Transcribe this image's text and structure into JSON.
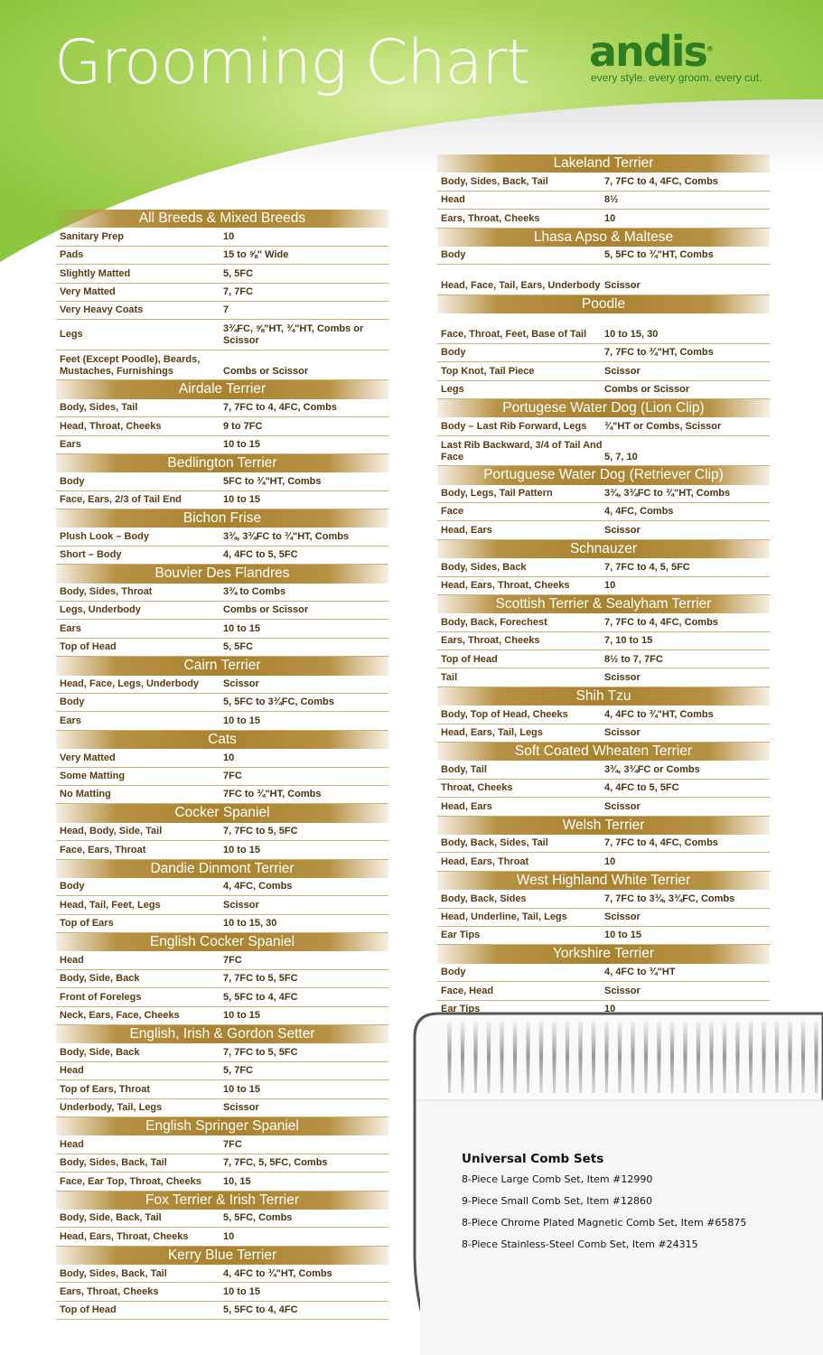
{
  "header": {
    "title": "Grooming Chart",
    "logo": "andis",
    "tagline": "every style. every groom. every cut."
  },
  "colors": {
    "green": "#8dc63f",
    "brand_green": "#2f7d22",
    "gold": "#a9822f",
    "text_brown": "#5a3c12"
  },
  "left_column": [
    {
      "breed": "All Breeds & Mixed Breeds",
      "rows": [
        [
          "Sanitary Prep",
          "10"
        ],
        [
          "Pads",
          "15 to ⅝\" Wide"
        ],
        [
          "Slightly Matted",
          "5, 5FC"
        ],
        [
          "Very Matted",
          "7, 7FC"
        ],
        [
          "Very Heavy Coats",
          "7"
        ],
        [
          "Legs",
          "3¾FC, ⅝\"HT, ¾\"HT, Combs or Scissor"
        ],
        [
          "Feet (Except Poodle), Beards, Mustaches, Furnishings",
          "Combs or Scissor"
        ]
      ]
    },
    {
      "breed": "Airdale Terrier",
      "rows": [
        [
          "Body, Sides, Tail",
          "7, 7FC to 4, 4FC, Combs"
        ],
        [
          "Head, Throat, Cheeks",
          "9 to 7FC"
        ],
        [
          "Ears",
          "10 to 15"
        ]
      ]
    },
    {
      "breed": "Bedlington Terrier",
      "rows": [
        [
          "Body",
          "5FC to ¾\"HT, Combs"
        ],
        [
          "Face, Ears, 2/3 of Tail End",
          "10 to 15"
        ]
      ]
    },
    {
      "breed": "Bichon Frise",
      "rows": [
        [
          "Plush Look – Body",
          "3¾, 3¾FC to ¾\"HT, Combs"
        ],
        [
          "Short – Body",
          "4, 4FC to 5, 5FC"
        ]
      ]
    },
    {
      "breed": "Bouvier Des Flandres",
      "rows": [
        [
          "Body, Sides, Throat",
          "3¾ to Combs"
        ],
        [
          "Legs, Underbody",
          "Combs or Scissor"
        ],
        [
          "Ears",
          "10 to 15"
        ],
        [
          "Top of Head",
          "5, 5FC"
        ]
      ]
    },
    {
      "breed": "Cairn Terrier",
      "rows": [
        [
          "Head, Face, Legs, Underbody",
          "Scissor"
        ],
        [
          "Body",
          "5, 5FC to 3¾FC, Combs"
        ],
        [
          "Ears",
          "10 to 15"
        ]
      ]
    },
    {
      "breed": "Cats",
      "rows": [
        [
          "Very Matted",
          "10"
        ],
        [
          "Some Matting",
          "7FC"
        ],
        [
          "No Matting",
          "7FC to ¾\"HT, Combs"
        ]
      ]
    },
    {
      "breed": "Cocker Spaniel",
      "rows": [
        [
          "Head, Body, Side, Tail",
          "7, 7FC to 5, 5FC"
        ],
        [
          "Face, Ears, Throat",
          "10 to 15"
        ]
      ]
    },
    {
      "breed": "Dandie Dinmont Terrier",
      "rows": [
        [
          "Body",
          "4, 4FC, Combs"
        ],
        [
          "Head, Tail, Feet, Legs",
          "Scissor"
        ],
        [
          "Top of Ears",
          "10 to 15, 30"
        ]
      ]
    },
    {
      "breed": "English Cocker Spaniel",
      "rows": [
        [
          "Head",
          "7FC"
        ],
        [
          "Body, Side, Back",
          "7, 7FC to 5, 5FC"
        ],
        [
          "Front of Forelegs",
          "5, 5FC to 4, 4FC"
        ],
        [
          "Neck, Ears, Face, Cheeks",
          "10 to 15"
        ]
      ]
    },
    {
      "breed": "English, Irish & Gordon Setter",
      "rows": [
        [
          "Body, Side, Back",
          "7, 7FC to 5, 5FC"
        ],
        [
          "Head",
          "5, 7FC"
        ],
        [
          "Top of Ears, Throat",
          "10 to 15"
        ],
        [
          "Underbody, Tail, Legs",
          "Scissor"
        ]
      ]
    },
    {
      "breed": "English Springer Spaniel",
      "rows": [
        [
          "Head",
          "7FC"
        ],
        [
          "Body, Sides, Back, Tail",
          "7, 7FC, 5, 5FC, Combs"
        ],
        [
          "Face, Ear Top, Throat, Cheeks",
          "10, 15"
        ]
      ]
    },
    {
      "breed": "Fox Terrier & Irish Terrier",
      "rows": [
        [
          "Body, Side, Back, Tail",
          "5, 5FC, Combs"
        ],
        [
          "Head, Ears, Throat, Cheeks",
          "10"
        ]
      ]
    },
    {
      "breed": "Kerry Blue Terrier",
      "rows": [
        [
          "Body, Sides, Back, Tail",
          "4, 4FC to ¾\"HT, Combs"
        ],
        [
          "Ears, Throat, Cheeks",
          "10 to 15"
        ],
        [
          "Top of Head",
          "5, 5FC to 4, 4FC"
        ]
      ]
    }
  ],
  "right_column": [
    {
      "breed": "Lakeland Terrier",
      "rows": [
        [
          "Body, Sides, Back, Tail",
          "7, 7FC to 4, 4FC, Combs"
        ],
        [
          "Head",
          "8½"
        ],
        [
          "Ears, Throat, Cheeks",
          "10"
        ]
      ]
    },
    {
      "breed": "Lhasa Apso & Maltese",
      "rows": [
        [
          "Body",
          "5, 5FC to ¾\"HT, Combs"
        ],
        [
          "Head, Face, Tail, Ears, Underbody",
          "Scissor"
        ]
      ]
    },
    {
      "breed": "Poodle",
      "rows": [
        [
          "Face, Throat, Feet, Base of Tail",
          "10 to 15, 30"
        ],
        [
          "Body",
          "7, 7FC to ¾\"HT, Combs"
        ],
        [
          "Top Knot, Tail Piece",
          "Scissor"
        ],
        [
          "Legs",
          "Combs or Scissor"
        ]
      ]
    },
    {
      "breed": "Portugese Water Dog (Lion Clip)",
      "rows": [
        [
          "Body – Last Rib Forward, Legs",
          "¾\"HT or Combs, Scissor"
        ],
        [
          "Last Rib Backward, 3/4 of Tail And Face",
          "5, 7, 10"
        ]
      ]
    },
    {
      "breed": "Portuguese Water Dog (Retriever Clip)",
      "rows": [
        [
          "Body, Legs, Tail Pattern",
          "3¾, 3¾FC to ¾\"HT, Combs"
        ],
        [
          "Face",
          "4, 4FC, Combs"
        ],
        [
          "Head, Ears",
          "Scissor"
        ]
      ]
    },
    {
      "breed": "Schnauzer",
      "rows": [
        [
          "Body, Sides, Back",
          "7, 7FC to 4, 5, 5FC"
        ],
        [
          "Head, Ears, Throat, Cheeks",
          "10"
        ]
      ]
    },
    {
      "breed": "Scottish Terrier & Sealyham Terrier",
      "rows": [
        [
          "Body, Back, Forechest",
          "7, 7FC to 4, 4FC, Combs"
        ],
        [
          "Ears, Throat, Cheeks",
          "7, 10 to 15"
        ],
        [
          "Top of Head",
          "8½ to 7, 7FC"
        ],
        [
          "Tail",
          "Scissor"
        ]
      ]
    },
    {
      "breed": "Shih Tzu",
      "rows": [
        [
          "Body, Top of Head, Cheeks",
          "4, 4FC to ¾\"HT, Combs"
        ],
        [
          "Head, Ears, Tail, Legs",
          "Scissor"
        ]
      ]
    },
    {
      "breed": "Soft Coated Wheaten Terrier",
      "rows": [
        [
          "Body, Tail",
          "3¾, 3¾FC or Combs"
        ],
        [
          "Throat, Cheeks",
          "4, 4FC to 5, 5FC"
        ],
        [
          "Head, Ears",
          "Scissor"
        ]
      ]
    },
    {
      "breed": "Welsh Terrier",
      "rows": [
        [
          "Body, Back, Sides, Tail",
          "7, 7FC to 4, 4FC, Combs"
        ],
        [
          "Head, Ears, Throat",
          "10"
        ]
      ]
    },
    {
      "breed": "West Highland White Terrier",
      "rows": [
        [
          "Body, Back, Sides",
          "7, 7FC to 3¾, 3¾FC, Combs"
        ],
        [
          "Head, Underline, Tail, Legs",
          "Scissor"
        ],
        [
          "Ear Tips",
          "10 to 15"
        ]
      ]
    },
    {
      "breed": "Yorkshire Terrier",
      "rows": [
        [
          "Body",
          "4, 4FC to ¾\"HT"
        ],
        [
          "Face, Head",
          "Scissor"
        ],
        [
          "Ear Tips",
          "10"
        ]
      ]
    }
  ],
  "comb_sets": {
    "title": "Universal Comb Sets",
    "items": [
      "8-Piece Large Comb Set, Item #12990",
      "9-Piece Small Comb Set, Item #12860",
      "8-Piece Chrome Plated Magnetic Comb Set, Item #65875",
      "8-Piece Stainless-Steel Comb Set, Item #24315"
    ]
  }
}
